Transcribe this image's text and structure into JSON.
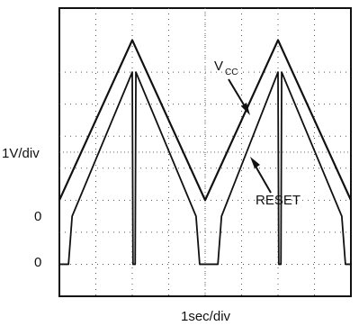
{
  "chart_data": {
    "type": "line",
    "xlabel": "1sec/div",
    "ylabel": "1V/div",
    "y_zero_labels": [
      "0",
      "0"
    ],
    "grid": true,
    "series": [
      {
        "name": "VCC",
        "label_main": "V",
        "label_sub": "CC",
        "points": [
          [
            0,
            2.0
          ],
          [
            2.0,
            7.0
          ],
          [
            4.0,
            2.0
          ],
          [
            6.0,
            7.0
          ],
          [
            8.0,
            2.0
          ]
        ]
      },
      {
        "name": "RESET",
        "label_main": "RESET",
        "label_sub": "",
        "points": [
          [
            0,
            0
          ],
          [
            0.25,
            0
          ],
          [
            0.35,
            1.5
          ],
          [
            2.0,
            6.0
          ],
          [
            2.02,
            0
          ],
          [
            2.08,
            0
          ],
          [
            2.1,
            6.0
          ],
          [
            3.75,
            1.5
          ],
          [
            3.85,
            0
          ],
          [
            4.35,
            0
          ],
          [
            4.45,
            1.5
          ],
          [
            6.0,
            6.0
          ],
          [
            6.02,
            0
          ],
          [
            6.08,
            0
          ],
          [
            6.1,
            6.0
          ],
          [
            7.75,
            1.5
          ],
          [
            7.85,
            0
          ],
          [
            8.0,
            0
          ]
        ]
      }
    ],
    "xlim": [
      0,
      8
    ],
    "ylim": [
      -1,
      8
    ]
  }
}
